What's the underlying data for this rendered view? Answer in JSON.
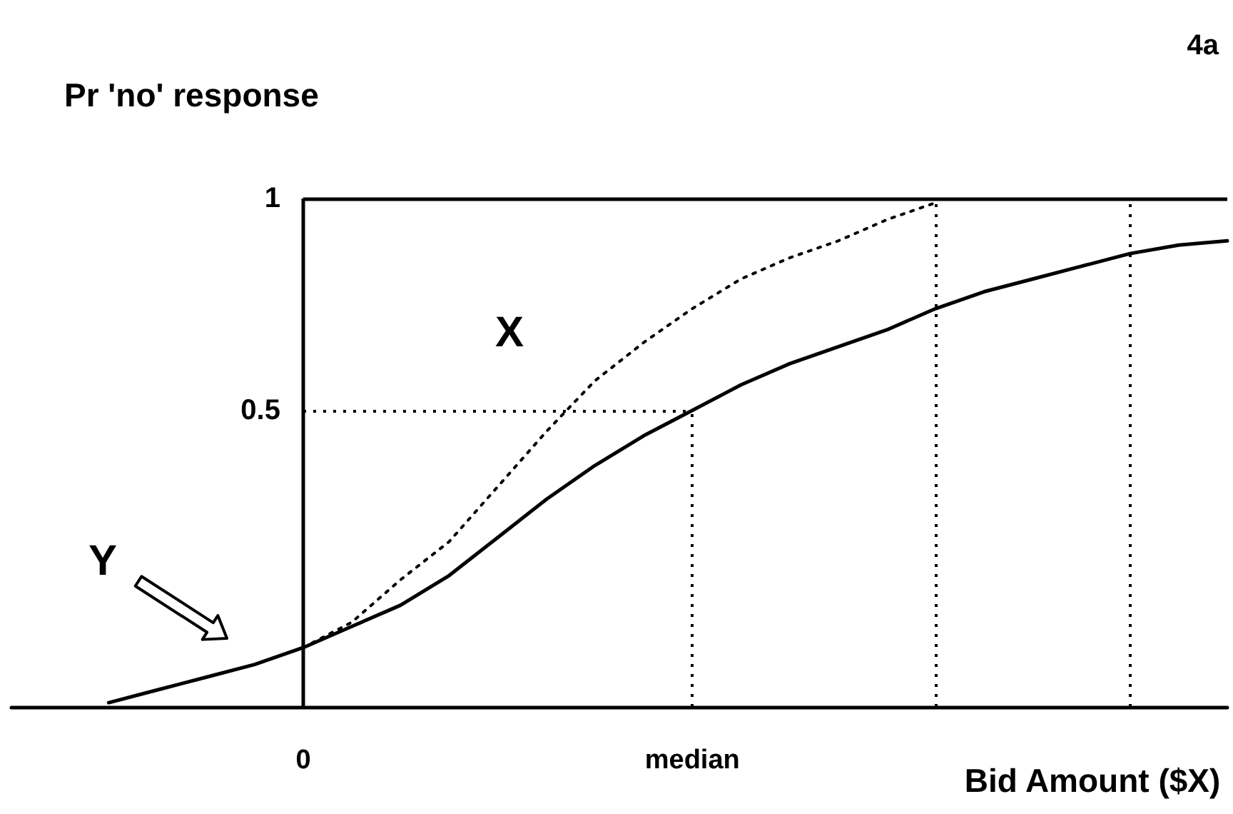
{
  "chart_data": {
    "type": "line",
    "ylabel": "Pr 'no' response",
    "xlabel": "Bid Amount ($X)",
    "annotations": [
      "4a",
      "X",
      "Y"
    ],
    "categories": [
      null,
      null,
      null,
      null,
      null,
      null,
      "0",
      null,
      null,
      null,
      null,
      null,
      null,
      null,
      "median",
      null,
      null,
      null,
      null,
      null,
      null,
      null,
      null,
      null,
      null,
      null
    ],
    "ylim": [
      -0.2,
      1
    ],
    "yticks": [
      0.5,
      1
    ],
    "series": [
      {
        "color": "#000000",
        "line_style": "solid",
        "values": [
          null,
          null,
          -0.19,
          -0.16,
          -0.13,
          -0.1,
          -0.06,
          -0.01,
          0.04,
          0.11,
          0.2,
          0.29,
          0.37,
          0.44,
          0.5,
          0.56,
          0.61,
          0.65,
          0.69,
          0.74,
          0.78,
          0.81,
          0.84,
          0.87,
          0.89,
          0.9
        ]
      },
      {
        "color": "#000000",
        "line_style": "dotted",
        "values": [
          null,
          null,
          null,
          null,
          null,
          null,
          -0.06,
          0.0,
          0.1,
          0.19,
          0.32,
          0.45,
          0.57,
          0.66,
          0.74,
          0.81,
          0.86,
          0.9,
          0.95,
          0.99,
          null,
          null,
          null,
          null,
          null,
          null
        ]
      }
    ],
    "ref_lines": [
      {
        "axis": "y",
        "value": 1,
        "line_style": "solid"
      },
      {
        "axis": "y",
        "value": 0.5,
        "line_style": "dotted"
      },
      {
        "axis": "x",
        "value": "median",
        "line_style": "dotted"
      }
    ],
    "marker": "none"
  }
}
